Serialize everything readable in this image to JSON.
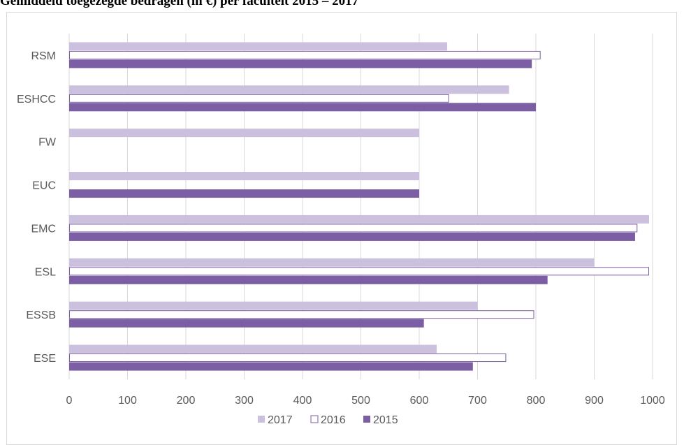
{
  "chart_data": {
    "type": "bar",
    "orientation": "horizontal",
    "title": "Gemiddeld toegezegde bedragen (in €) per faculteit 2015 – 2017",
    "categories": [
      "RSM",
      "ESHCC",
      "FW",
      "EUC",
      "EMC",
      "ESL",
      "ESSB",
      "ESE"
    ],
    "series": [
      {
        "name": "2017",
        "values": [
          648,
          754,
          600,
          600,
          994,
          900,
          700,
          630
        ],
        "color": "#cbc0dd",
        "fill": true
      },
      {
        "name": "2016",
        "values": [
          808,
          651,
          null,
          null,
          974,
          994,
          797,
          749
        ],
        "color": "#7c5ea4",
        "fill": false
      },
      {
        "name": "2015",
        "values": [
          793,
          800,
          null,
          600,
          970,
          820,
          608,
          692
        ],
        "color": "#7c5ea4",
        "fill": true
      }
    ],
    "xlim": [
      0,
      1000
    ],
    "xticks": [
      0,
      100,
      200,
      300,
      400,
      500,
      600,
      700,
      800,
      900,
      1000
    ],
    "grid": true,
    "legend": "bottom"
  }
}
